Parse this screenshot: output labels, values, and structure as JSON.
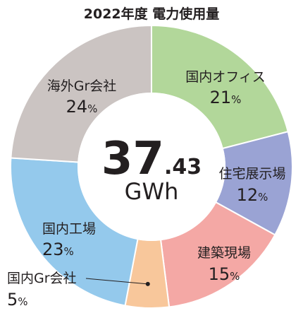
{
  "chart_data": {
    "type": "pie",
    "title": "2022年度 電力使用量",
    "total": {
      "integer": "37",
      "decimal": ".43",
      "unit": "GWh"
    },
    "unit_suffix": "%",
    "slices": [
      {
        "name": "国内オフィス",
        "value": 21,
        "color": "#b2d79a"
      },
      {
        "name": "住宅展示場",
        "value": 12,
        "color": "#9aa3d4"
      },
      {
        "name": "建築現場",
        "value": 15,
        "color": "#f4a8a5"
      },
      {
        "name": "国内Gr会社",
        "value": 5,
        "color": "#f8c79b"
      },
      {
        "name": "国内工場",
        "value": 23,
        "color": "#94c9ec"
      },
      {
        "name": "海外Gr会社",
        "value": 24,
        "color": "#cbc4c2"
      }
    ]
  }
}
